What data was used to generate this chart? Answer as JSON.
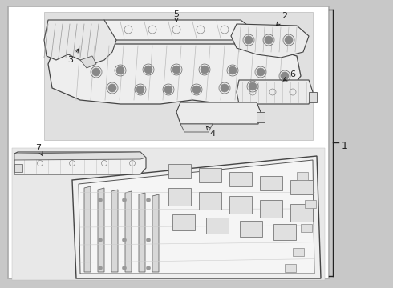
{
  "background_color": "#c8c8c8",
  "inner_bg": "#d8d8d8",
  "box_bg": "#ffffff",
  "box_fill": "#dcdcdc",
  "line_color": "#222222",
  "part_ec": "#333333",
  "part_fc": "#f2f2f2",
  "detail_color": "#666666",
  "fig_width": 4.9,
  "fig_height": 3.6,
  "dpi": 100
}
